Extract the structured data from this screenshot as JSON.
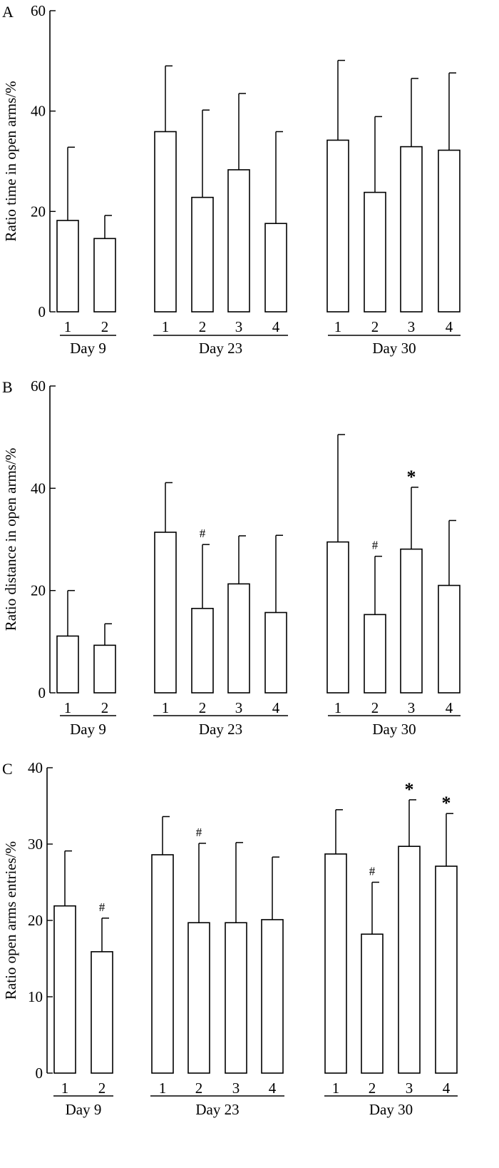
{
  "chart_data": [
    {
      "type": "bar",
      "panel": "A",
      "ylabel": "Ratio time in open arms/%",
      "ylim": [
        0,
        60
      ],
      "yticks": [
        "0",
        "20",
        "40",
        "60"
      ],
      "groups": [
        {
          "label": "Day 9",
          "bars": [
            {
              "cat": "1",
              "value": 18.2,
              "error": 14.6,
              "annotation": ""
            },
            {
              "cat": "2",
              "value": 14.6,
              "error": 4.6,
              "annotation": ""
            }
          ]
        },
        {
          "label": "Day 23",
          "bars": [
            {
              "cat": "1",
              "value": 35.9,
              "error": 13.1,
              "annotation": ""
            },
            {
              "cat": "2",
              "value": 22.8,
              "error": 17.4,
              "annotation": ""
            },
            {
              "cat": "3",
              "value": 28.3,
              "error": 15.2,
              "annotation": ""
            },
            {
              "cat": "4",
              "value": 17.6,
              "error": 18.3,
              "annotation": ""
            }
          ]
        },
        {
          "label": "Day 30",
          "bars": [
            {
              "cat": "1",
              "value": 34.2,
              "error": 15.9,
              "annotation": ""
            },
            {
              "cat": "2",
              "value": 23.8,
              "error": 15.1,
              "annotation": ""
            },
            {
              "cat": "3",
              "value": 32.9,
              "error": 13.6,
              "annotation": ""
            },
            {
              "cat": "4",
              "value": 32.2,
              "error": 15.4,
              "annotation": ""
            }
          ]
        }
      ]
    },
    {
      "type": "bar",
      "panel": "B",
      "ylabel": "Ratio distance in open arms/%",
      "ylim": [
        0,
        60
      ],
      "yticks": [
        "0",
        "20",
        "40",
        "60"
      ],
      "groups": [
        {
          "label": "Day 9",
          "bars": [
            {
              "cat": "1",
              "value": 11.1,
              "error": 8.9,
              "annotation": ""
            },
            {
              "cat": "2",
              "value": 9.3,
              "error": 4.2,
              "annotation": ""
            }
          ]
        },
        {
          "label": "Day 23",
          "bars": [
            {
              "cat": "1",
              "value": 31.4,
              "error": 9.7,
              "annotation": ""
            },
            {
              "cat": "2",
              "value": 16.5,
              "error": 12.5,
              "annotation": "#"
            },
            {
              "cat": "3",
              "value": 21.3,
              "error": 9.4,
              "annotation": ""
            },
            {
              "cat": "4",
              "value": 15.7,
              "error": 15.1,
              "annotation": ""
            }
          ]
        },
        {
          "label": "Day 30",
          "bars": [
            {
              "cat": "1",
              "value": 29.5,
              "error": 21.0,
              "annotation": ""
            },
            {
              "cat": "2",
              "value": 15.3,
              "error": 11.4,
              "annotation": "#"
            },
            {
              "cat": "3",
              "value": 28.1,
              "error": 12.1,
              "annotation": "*"
            },
            {
              "cat": "4",
              "value": 21.0,
              "error": 12.7,
              "annotation": ""
            }
          ]
        }
      ]
    },
    {
      "type": "bar",
      "panel": "C",
      "ylabel": "Ratio open arms entries/%",
      "ylim": [
        0,
        40
      ],
      "yticks": [
        "0",
        "10",
        "20",
        "30",
        "40"
      ],
      "groups": [
        {
          "label": "Day 9",
          "bars": [
            {
              "cat": "1",
              "value": 21.9,
              "error": 7.2,
              "annotation": ""
            },
            {
              "cat": "2",
              "value": 15.9,
              "error": 4.4,
              "annotation": "#"
            }
          ]
        },
        {
          "label": "Day 23",
          "bars": [
            {
              "cat": "1",
              "value": 28.6,
              "error": 5.0,
              "annotation": ""
            },
            {
              "cat": "2",
              "value": 19.7,
              "error": 10.4,
              "annotation": "#"
            },
            {
              "cat": "3",
              "value": 19.7,
              "error": 10.5,
              "annotation": ""
            },
            {
              "cat": "4",
              "value": 20.1,
              "error": 8.2,
              "annotation": ""
            }
          ]
        },
        {
          "label": "Day 30",
          "bars": [
            {
              "cat": "1",
              "value": 28.7,
              "error": 5.8,
              "annotation": ""
            },
            {
              "cat": "2",
              "value": 18.2,
              "error": 6.8,
              "annotation": "#"
            },
            {
              "cat": "3",
              "value": 29.7,
              "error": 6.1,
              "annotation": "*"
            },
            {
              "cat": "4",
              "value": 27.1,
              "error": 6.9,
              "annotation": "*"
            }
          ]
        }
      ]
    }
  ]
}
